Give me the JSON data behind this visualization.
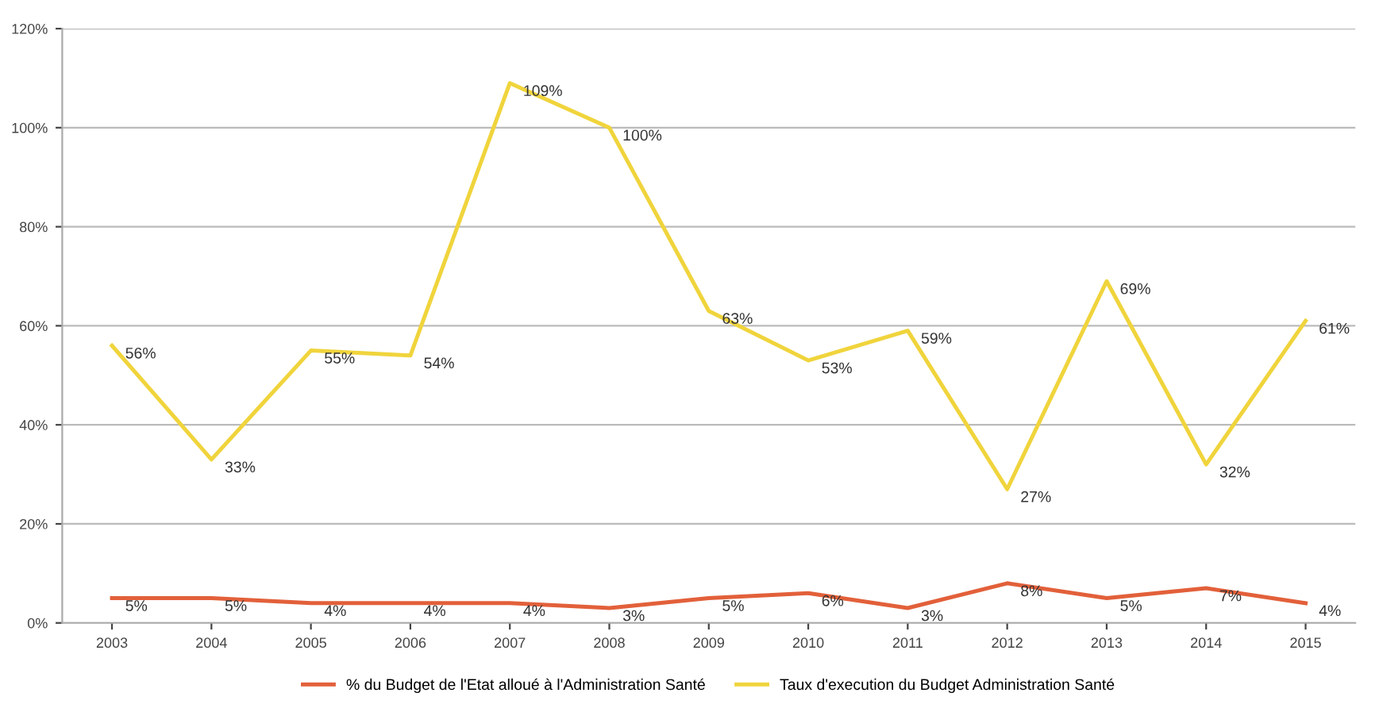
{
  "chart_data": {
    "type": "line",
    "categories": [
      "2003",
      "2004",
      "2005",
      "2006",
      "2007",
      "2008",
      "2009",
      "2010",
      "2011",
      "2012",
      "2013",
      "2014",
      "2015"
    ],
    "series": [
      {
        "name": "% du Budget de l'Etat alloué à l'Administration Santé",
        "color": "#e2603a",
        "values": [
          5,
          5,
          4,
          4,
          4,
          3,
          5,
          6,
          3,
          8,
          5,
          7,
          4
        ],
        "value_labels": [
          "5%",
          "5%",
          "4%",
          "4%",
          "4%",
          "3%",
          "5%",
          "6%",
          "3%",
          "8%",
          "5%",
          "7%",
          "4%"
        ]
      },
      {
        "name": "Taux d'execution du Budget Administration Santé",
        "color": "#f0d43c",
        "values": [
          56,
          33,
          55,
          54,
          109,
          100,
          63,
          53,
          59,
          27,
          69,
          32,
          61
        ],
        "value_labels": [
          "56%",
          "33%",
          "55%",
          "54%",
          "109%",
          "100%",
          "63%",
          "53%",
          "59%",
          "27%",
          "69%",
          "32%",
          "61%"
        ]
      }
    ],
    "ylim": [
      0,
      120
    ],
    "yticks": [
      {
        "value": 0,
        "label": "0%"
      },
      {
        "value": 20,
        "label": "20%"
      },
      {
        "value": 40,
        "label": "40%"
      },
      {
        "value": 60,
        "label": "60%"
      },
      {
        "value": 80,
        "label": "80%"
      },
      {
        "value": 100,
        "label": "100%"
      },
      {
        "value": 120,
        "label": "120%"
      }
    ],
    "grid": "y",
    "legend": "bottom",
    "marker": "none",
    "line_style": "solid"
  }
}
